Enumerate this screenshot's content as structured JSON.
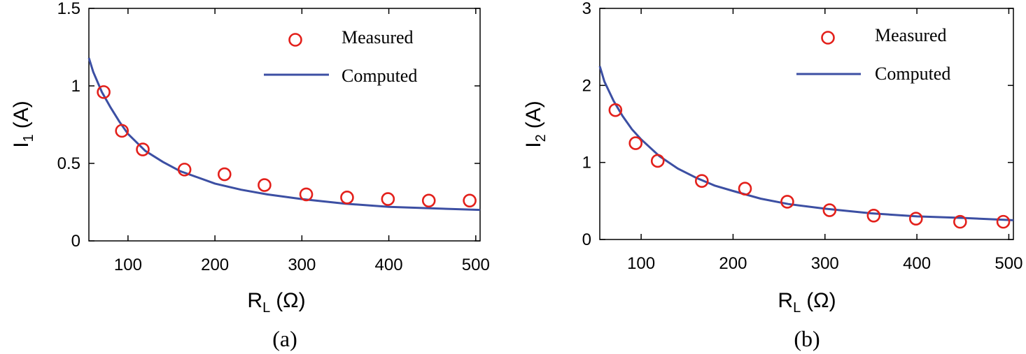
{
  "chart_data": [
    {
      "type": "scatter+line",
      "caption": "(a)",
      "xlabel": "R",
      "xlabel_sub": "L",
      "xlabel_unit": "(Ω)",
      "ylabel": "I",
      "ylabel_sub": "1",
      "ylabel_unit": "(A)",
      "xlim": [
        55,
        505
      ],
      "ylim": [
        0,
        1.5
      ],
      "xticks": [
        100,
        200,
        300,
        400,
        500
      ],
      "yticks": [
        0,
        0.5,
        1,
        1.5
      ],
      "ytick_labels": [
        "0",
        "0.5",
        "1",
        "1.5"
      ],
      "legend": {
        "measured": "Measured",
        "computed": "Computed",
        "position": "top-right"
      },
      "measured": {
        "x": [
          72,
          93,
          117,
          165,
          211,
          257,
          305,
          352,
          399,
          446,
          493
        ],
        "y": [
          0.96,
          0.71,
          0.59,
          0.46,
          0.43,
          0.36,
          0.3,
          0.28,
          0.27,
          0.26,
          0.26
        ]
      },
      "computed": {
        "x": [
          55,
          60,
          70,
          80,
          90,
          100,
          120,
          140,
          160,
          180,
          200,
          230,
          260,
          300,
          350,
          400,
          450,
          505
        ],
        "y": [
          1.18,
          1.09,
          0.96,
          0.86,
          0.77,
          0.69,
          0.58,
          0.51,
          0.45,
          0.41,
          0.37,
          0.33,
          0.3,
          0.27,
          0.24,
          0.22,
          0.21,
          0.2
        ]
      }
    },
    {
      "type": "scatter+line",
      "caption": "(b)",
      "xlabel": "R",
      "xlabel_sub": "L",
      "xlabel_unit": "(Ω)",
      "ylabel": "I",
      "ylabel_sub": "2",
      "ylabel_unit": "(A)",
      "xlim": [
        55,
        505
      ],
      "ylim": [
        0,
        3
      ],
      "xticks": [
        100,
        200,
        300,
        400,
        500
      ],
      "yticks": [
        0,
        1,
        2,
        3
      ],
      "ytick_labels": [
        "0",
        "1",
        "2",
        "3"
      ],
      "legend": {
        "measured": "Measured",
        "computed": "Computed",
        "position": "top-right"
      },
      "measured": {
        "x": [
          72,
          94,
          118,
          166,
          213,
          259,
          305,
          353,
          399,
          447,
          494
        ],
        "y": [
          1.68,
          1.25,
          1.02,
          0.76,
          0.66,
          0.49,
          0.38,
          0.31,
          0.27,
          0.23,
          0.23
        ]
      },
      "computed": {
        "x": [
          55,
          60,
          70,
          80,
          90,
          100,
          120,
          140,
          160,
          180,
          200,
          230,
          260,
          300,
          350,
          400,
          450,
          505
        ],
        "y": [
          2.25,
          2.05,
          1.8,
          1.6,
          1.43,
          1.3,
          1.08,
          0.92,
          0.8,
          0.7,
          0.63,
          0.53,
          0.46,
          0.4,
          0.34,
          0.3,
          0.28,
          0.25
        ]
      }
    }
  ]
}
